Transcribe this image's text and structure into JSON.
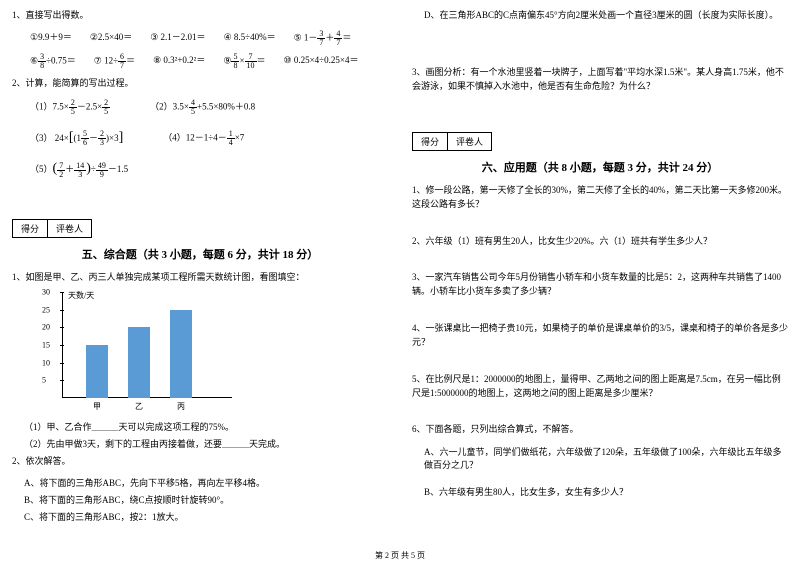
{
  "left": {
    "q1": {
      "title": "1、直接写出得数。",
      "row1": [
        "①9.9＋9＝",
        "②2.5×40＝",
        "③ 2.1－2.01＝",
        "④ 8.5÷40%＝",
        "⑤ 1－"
      ],
      "row1_frac1": {
        "n": "3",
        "d": "7"
      },
      "row1_plus": "＋",
      "row1_frac2": {
        "n": "4",
        "d": "7"
      },
      "row1_eq": "＝",
      "row2_a": "⑥",
      "row2_frac_a": {
        "n": "3",
        "d": "8"
      },
      "row2_a2": "÷0.75＝",
      "row2_b": "⑦ 12÷",
      "row2_frac_b": {
        "n": "6",
        "d": "7"
      },
      "row2_b2": "＝",
      "row2_c": "⑧ 0.3²+0.2²＝",
      "row2_d": "⑨",
      "row2_frac_d1": {
        "n": "5",
        "d": "8"
      },
      "row2_d_x": "×",
      "row2_frac_d2": {
        "n": "7",
        "d": "10"
      },
      "row2_d2": "＝",
      "row2_e": "⑩ 0.25×4÷0.25×4＝"
    },
    "q2": {
      "title": "2、计算，能简算的写出过程。",
      "e1_a": "（1）7.5×",
      "e1_frac": {
        "n": "2",
        "d": "5"
      },
      "e1_b": "－2.5×",
      "e1_frac2": {
        "n": "2",
        "d": "5"
      },
      "e2_a": "（2）",
      "e2_b": "3.5×",
      "e2_frac": {
        "n": "4",
        "d": "5"
      },
      "e2_c": "+5.5×80%＋0.8",
      "e3_a": "（3）",
      "e3_b": "24×",
      "e3_br": "[(1",
      "e3_frac1": {
        "n": "5",
        "d": "6"
      },
      "e3_m": "－",
      "e3_frac2": {
        "n": "2",
        "d": "3"
      },
      "e3_c": ")×3]",
      "e4_a": "（4）12－1÷4－",
      "e4_frac": {
        "n": "1",
        "d": "4"
      },
      "e4_b": "×7",
      "e5_a": "（5）",
      "e5_br": "(",
      "e5_frac1": {
        "n": "7",
        "d": "2"
      },
      "e5_p": "＋",
      "e5_frac2": {
        "n": "14",
        "d": "3"
      },
      "e5_br2": ")÷",
      "e5_frac3": {
        "n": "49",
        "d": "9"
      },
      "e5_c": "－1.5"
    },
    "score": {
      "s": "得分",
      "r": "评卷人"
    },
    "section5": "五、综合题（共 3 小题，每题 6 分，共计 18 分）",
    "sq1": {
      "title": "1、如图是甲、乙、丙三人单独完成某项工程所需天数统计图，看图填空：",
      "y_title": "天数/天",
      "y_ticks": [
        5,
        10,
        15,
        20,
        25,
        30
      ],
      "bars": [
        {
          "label": "甲",
          "value": 15,
          "color": "#5b9bd5"
        },
        {
          "label": "乙",
          "value": 20,
          "color": "#5b9bd5"
        },
        {
          "label": "丙",
          "value": 25,
          "color": "#5b9bd5"
        }
      ],
      "y_max": 30,
      "sub1": "（1）甲、乙合作＿＿＿天可以完成这项工程的75%。",
      "sub2": "（2）先由甲做3天，剩下的工程由丙接着做，还要＿＿＿天完成。"
    },
    "sq2": {
      "title": "2、依次解答。",
      "a": "A、将下面的三角形ABC，先向下平移5格，再向左平移4格。",
      "b": "B、将下面的三角形ABC，绕C点按顺时针旋转90°。",
      "c": "C、将下面的三角形ABC，按2：1放大。"
    }
  },
  "right": {
    "rq_d": "D、在三角形ABC的C点南偏东45°方向2厘米处画一个直径3厘米的圆（长度为实际长度）。",
    "rq3": "3、画图分析：有一个水池里竖着一块牌子，上面写着\"平均水深1.5米\"。某人身高1.75米，他不会游泳，如果不慎掉入水池中，他是否有生命危险？为什么？",
    "score": {
      "s": "得分",
      "r": "评卷人"
    },
    "section6": "六、应用题（共 8 小题，每题 3 分，共计 24 分）",
    "aq1": "1、修一段公路，第一天修了全长的30%，第二天修了全长的40%，第二天比第一天多修200米。这段公路有多长？",
    "aq2": "2、六年级（1）班有男生20人，比女生少20%。六（1）班共有学生多少人？",
    "aq3": "3、一家汽车销售公司今年5月份销售小轿车和小货车数量的比是5：2，这两种车共销售了1400辆。小轿车比小货车多卖了多少辆？",
    "aq4": "4、一张课桌比一把椅子贵10元，如果椅子的单价是课桌单价的3/5，课桌和椅子的单价各是多少元？",
    "aq5": "5、在比例尺是1：2000000的地图上，量得甲、乙两地之间的图上距离是7.5cm，在另一幅比例尺是1:5000000的地图上，这两地之间的图上距离是多少厘米？",
    "aq6": "6、下面各题，只列出综合算式，不解答。",
    "aq6a": "A、六一儿童节，同学们做纸花，六年级做了120朵，五年级做了100朵，六年级比五年级多做百分之几？",
    "aq6b": "B、六年级有男生80人，比女生多，女生有多少人？"
  },
  "footer": "第 2 页 共 5 页"
}
